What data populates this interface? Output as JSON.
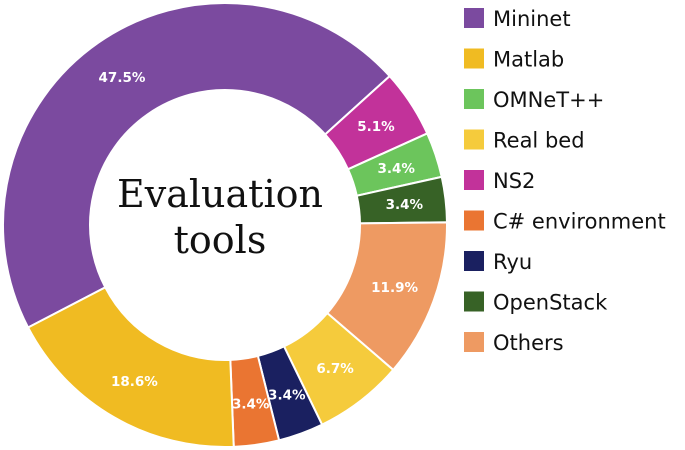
{
  "chart_data": {
    "type": "pie",
    "style": "donut",
    "center_label": [
      "Evaluation",
      "tools"
    ],
    "slices": [
      {
        "name": "Mininet",
        "value": 47.5,
        "label": "47.5%",
        "color": "#7b4a9f"
      },
      {
        "name": "NS2",
        "value": 5.1,
        "label": "5.1%",
        "color": "#c2329a"
      },
      {
        "name": "OMNeT++",
        "value": 3.4,
        "label": "3.4%",
        "color": "#6cc55c"
      },
      {
        "name": "OpenStack",
        "value": 3.4,
        "label": "3.4%",
        "color": "#376226"
      },
      {
        "name": "Others",
        "value": 11.9,
        "label": "11.9%",
        "color": "#ee9a62"
      },
      {
        "name": "Real bed",
        "value": 6.7,
        "label": "6.7%",
        "color": "#f5cb3c"
      },
      {
        "name": "Ryu",
        "value": 3.4,
        "label": "3.4%",
        "color": "#1a2060"
      },
      {
        "name": "C# environment",
        "value": 3.4,
        "label": "3.4%",
        "color": "#ea7532"
      },
      {
        "name": "Matlab",
        "value": 18.6,
        "label": "18.6%",
        "color": "#f0bb22"
      }
    ],
    "legend": {
      "placement": "right",
      "order": [
        "Mininet",
        "Matlab",
        "OMNeT++",
        "Real bed",
        "NS2",
        "C# environment",
        "Ryu",
        "OpenStack",
        "Others"
      ]
    }
  }
}
